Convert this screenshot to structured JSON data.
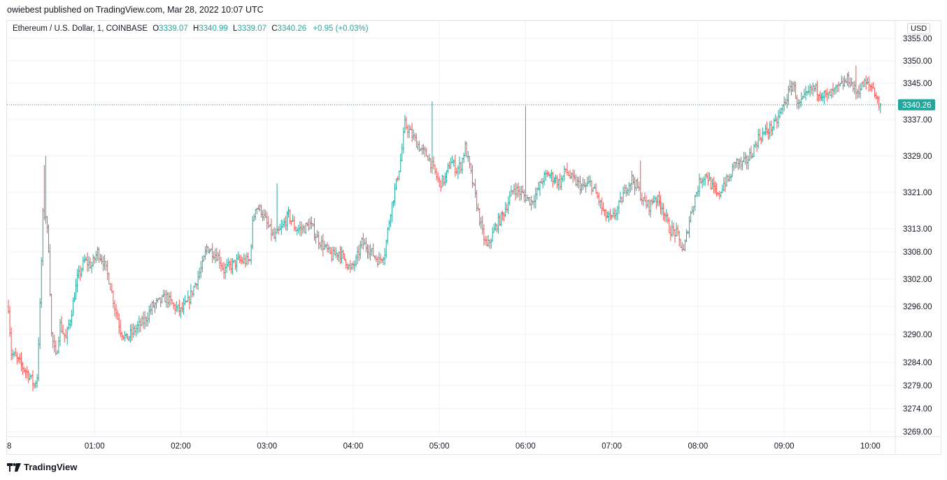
{
  "header": {
    "published_line": "owiebest published on TradingView.com, Mar 28, 2022 10:07 UTC"
  },
  "legend": {
    "symbol": "Ethereum / U.S. Dollar, 1, COINBASE",
    "open_label": "O",
    "open": "3339.07",
    "high_label": "H",
    "high": "3340.99",
    "low_label": "L",
    "low": "3339.07",
    "close_label": "C",
    "close": "3340.26",
    "change": "+0.95 (+0.03%)"
  },
  "currency": "USD",
  "footer": {
    "brand": "TradingView"
  },
  "colors": {
    "up": "#26a69a",
    "down": "#ef5350",
    "grid": "#f0f3fa",
    "axis_text": "#131722",
    "last_price_bg": "#26a69a"
  },
  "chart_data": {
    "type": "ohlc",
    "interval": "1 minute",
    "last_price": 3340.26,
    "last_price_label": "3340.26",
    "y_ticks": [
      3355,
      3350,
      3345,
      3337,
      3329,
      3321,
      3313,
      3308,
      3302,
      3296,
      3290,
      3284,
      3279,
      3274,
      3269
    ],
    "y_tick_labels": [
      "3355.00",
      "3350.00",
      "3345.00",
      "3337.00",
      "3329.00",
      "3321.00",
      "3313.00",
      "3308.00",
      "3302.00",
      "3296.00",
      "3290.00",
      "3284.00",
      "3279.00",
      "3274.00",
      "3269.00"
    ],
    "x_tick_labels": [
      "8",
      "01:00",
      "02:00",
      "03:00",
      "04:00",
      "05:00",
      "06:00",
      "07:00",
      "08:00",
      "09:00",
      "10:00"
    ],
    "x_tick_minutes": [
      0,
      60,
      120,
      180,
      240,
      300,
      360,
      420,
      480,
      540,
      600
    ],
    "minutes_shown": [
      0,
      607
    ],
    "close_anchors": [
      [
        0,
        3296
      ],
      [
        2,
        3286
      ],
      [
        5,
        3285
      ],
      [
        10,
        3283
      ],
      [
        15,
        3281
      ],
      [
        18,
        3279
      ],
      [
        20,
        3281
      ],
      [
        22,
        3296
      ],
      [
        24,
        3316
      ],
      [
        26,
        3316
      ],
      [
        28,
        3309
      ],
      [
        30,
        3290
      ],
      [
        33,
        3285
      ],
      [
        36,
        3292
      ],
      [
        40,
        3289
      ],
      [
        44,
        3295
      ],
      [
        48,
        3302
      ],
      [
        53,
        3306
      ],
      [
        58,
        3305
      ],
      [
        62,
        3308
      ],
      [
        66,
        3306
      ],
      [
        70,
        3302
      ],
      [
        74,
        3296
      ],
      [
        78,
        3291
      ],
      [
        82,
        3289
      ],
      [
        88,
        3291
      ],
      [
        95,
        3293
      ],
      [
        100,
        3296
      ],
      [
        105,
        3297
      ],
      [
        110,
        3298
      ],
      [
        115,
        3296
      ],
      [
        120,
        3295
      ],
      [
        125,
        3297
      ],
      [
        130,
        3301
      ],
      [
        135,
        3305
      ],
      [
        138,
        3309
      ],
      [
        142,
        3308
      ],
      [
        146,
        3307
      ],
      [
        150,
        3304
      ],
      [
        155,
        3305
      ],
      [
        160,
        3306
      ],
      [
        164,
        3306
      ],
      [
        168,
        3306
      ],
      [
        170,
        3314
      ],
      [
        172,
        3318
      ],
      [
        176,
        3317
      ],
      [
        180,
        3314
      ],
      [
        185,
        3311
      ],
      [
        190,
        3313
      ],
      [
        195,
        3316
      ],
      [
        200,
        3313
      ],
      [
        205,
        3313
      ],
      [
        210,
        3314
      ],
      [
        215,
        3311
      ],
      [
        220,
        3309
      ],
      [
        225,
        3307
      ],
      [
        230,
        3308
      ],
      [
        235,
        3306
      ],
      [
        238,
        3304
      ],
      [
        242,
        3306
      ],
      [
        246,
        3310
      ],
      [
        250,
        3309
      ],
      [
        255,
        3307
      ],
      [
        258,
        3306
      ],
      [
        262,
        3308
      ],
      [
        266,
        3317
      ],
      [
        270,
        3323
      ],
      [
        273,
        3328
      ],
      [
        276,
        3336
      ],
      [
        280,
        3334
      ],
      [
        284,
        3332
      ],
      [
        288,
        3330
      ],
      [
        292,
        3329
      ],
      [
        296,
        3326
      ],
      [
        300,
        3323
      ],
      [
        304,
        3324
      ],
      [
        308,
        3328
      ],
      [
        312,
        3326
      ],
      [
        315,
        3327
      ],
      [
        318,
        3331
      ],
      [
        322,
        3325
      ],
      [
        325,
        3320
      ],
      [
        330,
        3312
      ],
      [
        333,
        3309
      ],
      [
        336,
        3311
      ],
      [
        340,
        3314
      ],
      [
        344,
        3316
      ],
      [
        348,
        3319
      ],
      [
        352,
        3322
      ],
      [
        356,
        3321
      ],
      [
        360,
        3320
      ],
      [
        364,
        3319
      ],
      [
        368,
        3321
      ],
      [
        372,
        3324
      ],
      [
        376,
        3325
      ],
      [
        380,
        3324
      ],
      [
        384,
        3323
      ],
      [
        388,
        3326
      ],
      [
        392,
        3324
      ],
      [
        396,
        3323
      ],
      [
        400,
        3322
      ],
      [
        405,
        3323
      ],
      [
        410,
        3320
      ],
      [
        415,
        3316
      ],
      [
        420,
        3315
      ],
      [
        425,
        3318
      ],
      [
        430,
        3322
      ],
      [
        434,
        3324
      ],
      [
        438,
        3322
      ],
      [
        442,
        3319
      ],
      [
        446,
        3318
      ],
      [
        450,
        3320
      ],
      [
        455,
        3318
      ],
      [
        460,
        3313
      ],
      [
        465,
        3312
      ],
      [
        470,
        3308
      ],
      [
        474,
        3315
      ],
      [
        478,
        3320
      ],
      [
        482,
        3324
      ],
      [
        486,
        3325
      ],
      [
        490,
        3322
      ],
      [
        494,
        3320
      ],
      [
        498,
        3323
      ],
      [
        502,
        3324
      ],
      [
        506,
        3328
      ],
      [
        510,
        3327
      ],
      [
        514,
        3328
      ],
      [
        518,
        3330
      ],
      [
        522,
        3333
      ],
      [
        526,
        3334
      ],
      [
        530,
        3335
      ],
      [
        534,
        3336
      ],
      [
        538,
        3339
      ],
      [
        542,
        3342
      ],
      [
        546,
        3345
      ],
      [
        550,
        3340
      ]
    ],
    "spikes": [
      [
        25,
        3327
      ],
      [
        26,
        3329
      ],
      [
        187,
        3323
      ],
      [
        295,
        3341
      ],
      [
        360,
        3340
      ],
      [
        440,
        3328
      ],
      [
        590,
        3349
      ],
      [
        608,
        3348
      ]
    ]
  }
}
